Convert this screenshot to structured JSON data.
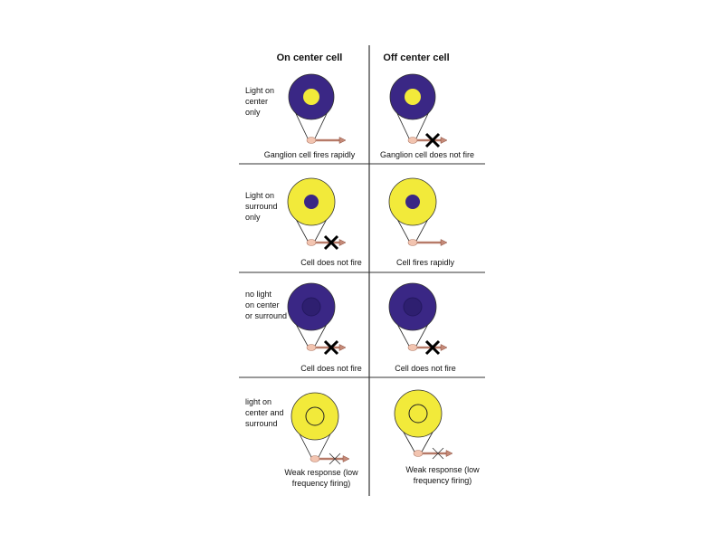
{
  "headers": {
    "on": "On center cell",
    "off": "Off center cell"
  },
  "colors": {
    "dark": "#3a2785",
    "darker": "#2e1f70",
    "light": "#f2ea3a",
    "soma": "#f2c4b0",
    "axon": "#c58a78"
  },
  "rows": [
    {
      "label": [
        "Light on",
        "center",
        "only"
      ],
      "on_caption": [
        "Ganglion cell fires rapidly"
      ],
      "off_caption": [
        "Ganglion cell does not fire"
      ]
    },
    {
      "label": [
        "Light on",
        "surround",
        "only"
      ],
      "on_caption": [
        "Cell does not fire"
      ],
      "off_caption": [
        "Cell fires rapidly"
      ]
    },
    {
      "label": [
        "no light",
        "on center",
        "or surround"
      ],
      "on_caption": [
        "Cell does not fire"
      ],
      "off_caption": [
        "Cell does not fire"
      ]
    },
    {
      "label": [
        "light on",
        "center and",
        "surround"
      ],
      "on_caption": [
        "Weak response (low",
        "frequency firing)"
      ],
      "off_caption": [
        "Weak response (low",
        "frequency firing)"
      ]
    }
  ]
}
